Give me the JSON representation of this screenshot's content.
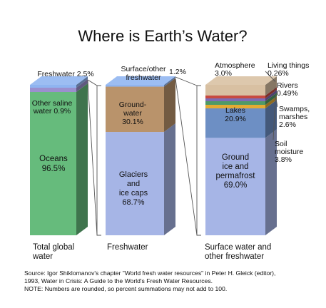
{
  "chart_data": {
    "type": "stacked-bar-3d",
    "title": "Where is Earth’s Water?",
    "bars": [
      {
        "category": [
          "Total global",
          "water"
        ],
        "segments": [
          {
            "name": "Oceans",
            "value": 96.5,
            "text": [
              "Oceans",
              "96.5%"
            ],
            "color": "#66bb7c"
          },
          {
            "name": "Other saline water",
            "value": 0.9,
            "text": [
              "Other saline",
              "water 0.9%"
            ],
            "color": "#9b8fce"
          },
          {
            "name": "Freshwater",
            "value": 2.5,
            "text": [
              "Freshwater 2.5%"
            ],
            "color": "#8fb4f0"
          }
        ]
      },
      {
        "category": [
          "Freshwater"
        ],
        "segments": [
          {
            "name": "Glaciers and ice caps",
            "value": 68.7,
            "text": [
              "Glaciers",
              "and",
              "ice caps",
              "68.7%"
            ],
            "color": "#a6b5e6"
          },
          {
            "name": "Ground-water",
            "value": 30.1,
            "text": [
              "Ground-",
              "water",
              "30.1%"
            ],
            "color": "#b9936b"
          },
          {
            "name": "Surface/other freshwater",
            "value": 1.2,
            "text": [
              "Surface/other",
              "freshwater",
              "1.2%"
            ],
            "color": "#8fb4f0"
          }
        ]
      },
      {
        "category": [
          "Surface water and",
          "other freshwater"
        ],
        "segments": [
          {
            "name": "Ground ice and permafrost",
            "value": 69.0,
            "text": [
              "Ground",
              "ice and",
              "permafrost",
              "69.0%"
            ],
            "color": "#a6b5e6"
          },
          {
            "name": "Lakes",
            "value": 20.9,
            "text": [
              "Lakes",
              "20.9%"
            ],
            "color": "#6d8fc4"
          },
          {
            "name": "Soil moisture",
            "value": 3.8,
            "text": [
              "Soil",
              "moisture",
              "3.8%"
            ],
            "color": "#e4ab33"
          },
          {
            "name": "Swamps, marshes",
            "value": 2.6,
            "text": [
              "Swamps,",
              "marshes",
              "2.6%"
            ],
            "color": "#4f9a66"
          },
          {
            "name": "Rivers",
            "value": 0.49,
            "text": [
              "Rivers",
              "0.49%"
            ],
            "color": "#7d6bb5"
          },
          {
            "name": "Living things",
            "value": 0.26,
            "text": [
              "Living things",
              "0.26%"
            ],
            "color": "#c74a41"
          },
          {
            "name": "Atmosphere",
            "value": 3.0,
            "text": [
              "Atmosphere",
              "3.0%"
            ],
            "color": "#d8c0a2"
          }
        ]
      }
    ],
    "source_note": [
      "Source: Igor Shiklomanov's chapter \"World fresh water resources\" in Peter H. Gleick (editor),",
      "1993, Water in Crisis: A Guide to the World's Fresh Water Resources.",
      "NOTE: Numbers are rounded, so percent summations may not add to 100."
    ]
  }
}
